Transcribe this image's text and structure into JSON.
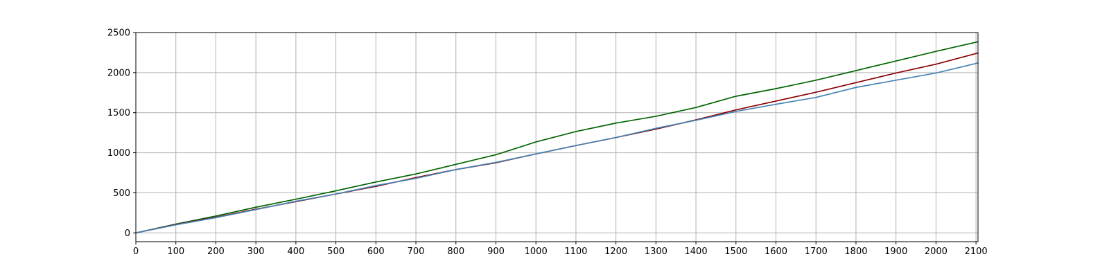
{
  "chart_data": {
    "type": "line",
    "title": "",
    "xlabel": "",
    "ylabel": "",
    "xlim": [
      0,
      2105
    ],
    "ylim": [
      -110,
      2500
    ],
    "grid": true,
    "legend": "none",
    "x_ticks": [
      "0",
      "100",
      "200",
      "300",
      "400",
      "500",
      "600",
      "700",
      "800",
      "900",
      "1000",
      "1100",
      "1200",
      "1300",
      "1400",
      "1500",
      "1600",
      "1700",
      "1800",
      "1900",
      "2000",
      "2100"
    ],
    "y_ticks": [
      "0",
      "500",
      "1000",
      "1500",
      "2000",
      "2500"
    ],
    "x": [
      0,
      100,
      200,
      300,
      400,
      500,
      600,
      700,
      800,
      900,
      1000,
      1100,
      1200,
      1300,
      1400,
      1500,
      1600,
      1700,
      1800,
      1900,
      2000,
      2105
    ],
    "series": [
      {
        "color": "#006400",
        "values": [
          0,
          110,
          210,
          320,
          420,
          525,
          635,
          735,
          855,
          975,
          1135,
          1265,
          1370,
          1455,
          1565,
          1705,
          1800,
          1905,
          2025,
          2145,
          2265,
          2385
        ]
      },
      {
        "color": "#8b0000",
        "values": [
          0,
          105,
          195,
          295,
          390,
          485,
          580,
          690,
          790,
          875,
          985,
          1090,
          1190,
          1295,
          1410,
          1535,
          1645,
          1755,
          1875,
          1995,
          2105,
          2245
        ]
      },
      {
        "color": "#4682b4",
        "values": [
          0,
          100,
          190,
          290,
          395,
          485,
          590,
          680,
          790,
          880,
          985,
          1090,
          1190,
          1305,
          1405,
          1515,
          1605,
          1690,
          1815,
          1905,
          1995,
          2120
        ]
      }
    ]
  }
}
